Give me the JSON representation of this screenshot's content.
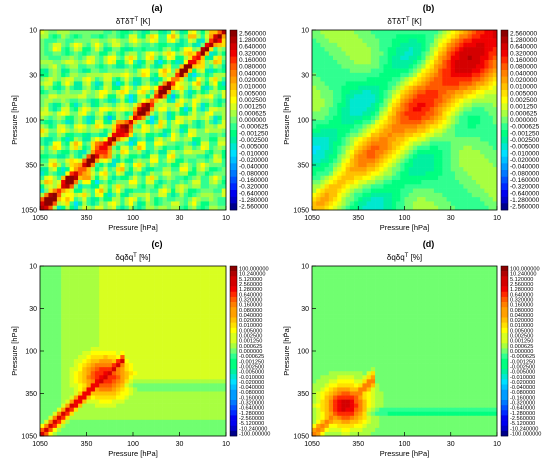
{
  "figure": {
    "stray_mark": ","
  },
  "colorbar_labels_T": [
    "2.560000",
    "1.280000",
    "0.640000",
    "0.320000",
    "0.160000",
    "0.080000",
    "0.040000",
    "0.020000",
    "0.010000",
    "0.005000",
    "0.002500",
    "0.001250",
    "0.000625",
    "0.000000",
    "-0.000625",
    "-0.001250",
    "-0.002500",
    "-0.005000",
    "-0.010000",
    "-0.020000",
    "-0.040000",
    "-0.080000",
    "-0.160000",
    "-0.320000",
    "-0.640000",
    "-1.280000",
    "-2.560000"
  ],
  "colorbar_labels_q": [
    "100.000000",
    "10.240000",
    "5.120000",
    "2.560000",
    "1.280000",
    "0.640000",
    "0.320000",
    "0.160000",
    "0.080000",
    "0.040000",
    "0.020000",
    "0.010000",
    "0.005000",
    "0.002500",
    "0.001250",
    "0.000625",
    "0.000000",
    "-0.000625",
    "-0.001250",
    "-0.002500",
    "-0.005000",
    "-0.010000",
    "-0.020000",
    "-0.040000",
    "-0.080000",
    "-0.160000",
    "-0.320000",
    "-0.640000",
    "-1.280000",
    "-2.560000",
    "-5.120000",
    "-10.240000",
    "-100.000000"
  ],
  "colors": [
    "#8b0000",
    "#b00000",
    "#d40000",
    "#f00000",
    "#ff2a00",
    "#ff5a00",
    "#ff8000",
    "#ffa000",
    "#ffc000",
    "#ffe000",
    "#ffff00",
    "#d8ff20",
    "#a8ff40",
    "#70ff70",
    "#30ff90",
    "#00ff80",
    "#00f0a0",
    "#00e8d0",
    "#00e0ff",
    "#00c0ff",
    "#009cff",
    "#0078ff",
    "#0050ff",
    "#0028ff",
    "#0000f0",
    "#0000c8",
    "#00008b"
  ],
  "chart_data": [
    {
      "type": "heatmap",
      "panel_label": "(a)",
      "title": "δTδT",
      "title_sup": "T",
      "title_units": " [K]",
      "xlabel": "Pressure [hPa]",
      "ylabel": "Pressure [hPa]",
      "x_ticks": [
        "1050",
        "350",
        "100",
        "30",
        "10"
      ],
      "y_ticks": [
        "10",
        "30",
        "100",
        "350",
        "1050"
      ],
      "xlim": [
        1050,
        10
      ],
      "ylim": [
        10,
        1050
      ],
      "log_scale": true,
      "zlim": [
        -2.56,
        2.56
      ],
      "pattern": "sharp_diagonal"
    },
    {
      "type": "heatmap",
      "panel_label": "(b)",
      "title": "δTδT",
      "title_sup": "T",
      "title_units": " [K]",
      "xlabel": "Pressure [hPa]",
      "ylabel": "Pressure [hPa]",
      "x_ticks": [
        "1050",
        "350",
        "100",
        "30",
        "10"
      ],
      "y_ticks": [
        "10",
        "30",
        "100",
        "350",
        "1050"
      ],
      "xlim": [
        1050,
        10
      ],
      "ylim": [
        10,
        1050
      ],
      "log_scale": true,
      "zlim": [
        -2.56,
        2.56
      ],
      "pattern": "broad_diagonal"
    },
    {
      "type": "heatmap",
      "panel_label": "(c)",
      "title": "δqδq",
      "title_sup": "T",
      "title_units": " [%]",
      "xlabel": "Pressure [hPa]",
      "ylabel": "Pressure [hPa]",
      "x_ticks": [
        "1050",
        "350",
        "100",
        "30",
        "10"
      ],
      "y_ticks": [
        "10",
        "30",
        "100",
        "350",
        "1050"
      ],
      "xlim": [
        1050,
        10
      ],
      "ylim": [
        10,
        1050
      ],
      "log_scale": true,
      "zlim": [
        -100,
        100
      ],
      "pattern": "humidity_mid"
    },
    {
      "type": "heatmap",
      "panel_label": "(d)",
      "title": "δqδq",
      "title_sup": "T",
      "title_units": " [%]",
      "xlabel": "Pressure [hPa]",
      "ylabel": "Pressure [hPa]",
      "x_ticks": [
        "1050",
        "350",
        "100",
        "30",
        "10"
      ],
      "y_ticks": [
        "10",
        "30",
        "100",
        "350",
        "1050"
      ],
      "xlim": [
        1050,
        10
      ],
      "ylim": [
        10,
        1050
      ],
      "log_scale": true,
      "zlim": [
        -100,
        100
      ],
      "pattern": "humidity_low"
    }
  ]
}
